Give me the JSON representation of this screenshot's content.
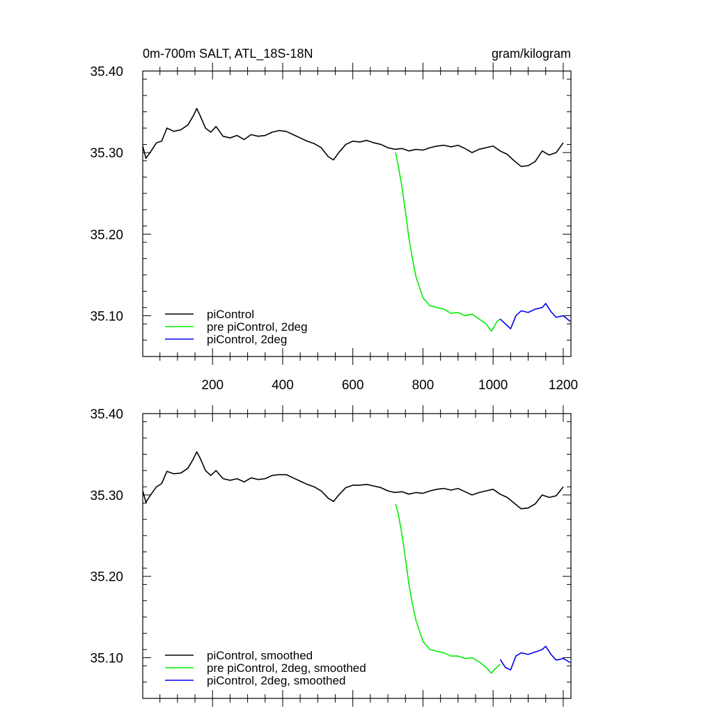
{
  "chart_data": [
    {
      "type": "line",
      "title": "0m-700m SALT, ATL_18S-18N",
      "units": "gram/kilogram",
      "xlim": [
        1,
        1222
      ],
      "ylim": [
        35.05,
        35.4
      ],
      "x_ticks": [
        200,
        400,
        600,
        800,
        1000,
        1200
      ],
      "y_ticks": [
        35.1,
        35.2,
        35.3,
        35.4
      ],
      "y_tick_labels": [
        "35.10",
        "35.20",
        "35.30",
        "35.40"
      ],
      "x_tick_labels": [
        "200",
        "400",
        "600",
        "800",
        "1000",
        "1200"
      ],
      "legend_position": "bottom-left",
      "series": [
        {
          "name": "piControl",
          "color": "#000000",
          "points": [
            [
              1,
              35.308
            ],
            [
              10,
              35.293
            ],
            [
              25,
              35.302
            ],
            [
              40,
              35.312
            ],
            [
              55,
              35.314
            ],
            [
              70,
              35.33
            ],
            [
              90,
              35.326
            ],
            [
              110,
              35.328
            ],
            [
              130,
              35.334
            ],
            [
              145,
              35.345
            ],
            [
              155,
              35.354
            ],
            [
              165,
              35.345
            ],
            [
              180,
              35.33
            ],
            [
              195,
              35.325
            ],
            [
              210,
              35.332
            ],
            [
              230,
              35.32
            ],
            [
              250,
              35.318
            ],
            [
              270,
              35.321
            ],
            [
              290,
              35.316
            ],
            [
              310,
              35.322
            ],
            [
              330,
              35.32
            ],
            [
              350,
              35.321
            ],
            [
              370,
              35.325
            ],
            [
              390,
              35.327
            ],
            [
              410,
              35.326
            ],
            [
              430,
              35.322
            ],
            [
              450,
              35.318
            ],
            [
              470,
              35.314
            ],
            [
              490,
              35.311
            ],
            [
              510,
              35.306
            ],
            [
              530,
              35.295
            ],
            [
              545,
              35.291
            ],
            [
              560,
              35.3
            ],
            [
              580,
              35.31
            ],
            [
              600,
              35.314
            ],
            [
              620,
              35.313
            ],
            [
              640,
              35.315
            ],
            [
              660,
              35.312
            ],
            [
              680,
              35.31
            ],
            [
              700,
              35.306
            ],
            [
              720,
              35.304
            ],
            [
              740,
              35.305
            ],
            [
              760,
              35.302
            ],
            [
              780,
              35.304
            ],
            [
              800,
              35.303
            ],
            [
              820,
              35.306
            ],
            [
              840,
              35.308
            ],
            [
              860,
              35.309
            ],
            [
              880,
              35.307
            ],
            [
              900,
              35.309
            ],
            [
              920,
              35.305
            ],
            [
              940,
              35.3
            ],
            [
              960,
              35.304
            ],
            [
              980,
              35.306
            ],
            [
              1000,
              35.308
            ],
            [
              1020,
              35.302
            ],
            [
              1040,
              35.298
            ],
            [
              1060,
              35.29
            ],
            [
              1080,
              35.283
            ],
            [
              1100,
              35.284
            ],
            [
              1120,
              35.289
            ],
            [
              1140,
              35.302
            ],
            [
              1160,
              35.297
            ],
            [
              1180,
              35.3
            ],
            [
              1200,
              35.312
            ]
          ]
        },
        {
          "name": "pre piControl, 2deg",
          "color": "#00ee00",
          "points": [
            [
              722,
              35.3
            ],
            [
              730,
              35.283
            ],
            [
              740,
              35.258
            ],
            [
              750,
              35.228
            ],
            [
              760,
              35.195
            ],
            [
              770,
              35.17
            ],
            [
              780,
              35.148
            ],
            [
              790,
              35.135
            ],
            [
              800,
              35.122
            ],
            [
              820,
              35.112
            ],
            [
              840,
              35.11
            ],
            [
              860,
              35.108
            ],
            [
              880,
              35.103
            ],
            [
              900,
              35.104
            ],
            [
              920,
              35.1
            ],
            [
              940,
              35.102
            ],
            [
              960,
              35.096
            ],
            [
              980,
              35.09
            ],
            [
              995,
              35.081
            ],
            [
              1010,
              35.092
            ],
            [
              1020,
              35.096
            ]
          ]
        },
        {
          "name": "piControl, 2deg",
          "color": "#0000ee",
          "points": [
            [
              1020,
              35.096
            ],
            [
              1035,
              35.09
            ],
            [
              1050,
              35.084
            ],
            [
              1065,
              35.1
            ],
            [
              1080,
              35.106
            ],
            [
              1100,
              35.104
            ],
            [
              1120,
              35.108
            ],
            [
              1140,
              35.11
            ],
            [
              1150,
              35.115
            ],
            [
              1165,
              35.105
            ],
            [
              1180,
              35.098
            ],
            [
              1200,
              35.1
            ],
            [
              1220,
              35.093
            ]
          ]
        }
      ]
    },
    {
      "type": "line",
      "title": "",
      "xlim": [
        1,
        1222
      ],
      "ylim": [
        35.05,
        35.4
      ],
      "x_ticks": [
        200,
        400,
        600,
        800,
        1000,
        1200
      ],
      "y_ticks": [
        35.1,
        35.2,
        35.3,
        35.4
      ],
      "y_tick_labels": [
        "35.10",
        "35.20",
        "35.30",
        "35.40"
      ],
      "legend_position": "bottom-left",
      "series": [
        {
          "name": "piControl, smoothed",
          "color": "#000000",
          "points": [
            [
              1,
              35.305
            ],
            [
              10,
              35.291
            ],
            [
              25,
              35.301
            ],
            [
              40,
              35.31
            ],
            [
              55,
              35.314
            ],
            [
              70,
              35.329
            ],
            [
              90,
              35.326
            ],
            [
              110,
              35.327
            ],
            [
              130,
              35.333
            ],
            [
              145,
              35.344
            ],
            [
              155,
              35.353
            ],
            [
              165,
              35.345
            ],
            [
              180,
              35.33
            ],
            [
              195,
              35.324
            ],
            [
              210,
              35.33
            ],
            [
              230,
              35.32
            ],
            [
              250,
              35.318
            ],
            [
              270,
              35.32
            ],
            [
              290,
              35.316
            ],
            [
              310,
              35.321
            ],
            [
              330,
              35.319
            ],
            [
              350,
              35.32
            ],
            [
              370,
              35.324
            ],
            [
              390,
              35.325
            ],
            [
              410,
              35.325
            ],
            [
              430,
              35.321
            ],
            [
              450,
              35.317
            ],
            [
              470,
              35.313
            ],
            [
              490,
              35.31
            ],
            [
              510,
              35.305
            ],
            [
              530,
              35.296
            ],
            [
              545,
              35.292
            ],
            [
              560,
              35.3
            ],
            [
              580,
              35.309
            ],
            [
              600,
              35.312
            ],
            [
              620,
              35.312
            ],
            [
              640,
              35.313
            ],
            [
              660,
              35.311
            ],
            [
              680,
              35.309
            ],
            [
              700,
              35.305
            ],
            [
              720,
              35.303
            ],
            [
              740,
              35.304
            ],
            [
              760,
              35.301
            ],
            [
              780,
              35.303
            ],
            [
              800,
              35.302
            ],
            [
              820,
              35.305
            ],
            [
              840,
              35.307
            ],
            [
              860,
              35.308
            ],
            [
              880,
              35.306
            ],
            [
              900,
              35.308
            ],
            [
              920,
              35.304
            ],
            [
              940,
              35.3
            ],
            [
              960,
              35.303
            ],
            [
              980,
              35.305
            ],
            [
              1000,
              35.307
            ],
            [
              1020,
              35.301
            ],
            [
              1040,
              35.297
            ],
            [
              1060,
              35.29
            ],
            [
              1080,
              35.283
            ],
            [
              1100,
              35.284
            ],
            [
              1120,
              35.289
            ],
            [
              1140,
              35.3
            ],
            [
              1160,
              35.297
            ],
            [
              1180,
              35.299
            ],
            [
              1200,
              35.31
            ]
          ]
        },
        {
          "name": "pre piControl, 2deg, smoothed",
          "color": "#00ee00",
          "points": [
            [
              722,
              35.289
            ],
            [
              730,
              35.276
            ],
            [
              740,
              35.252
            ],
            [
              750,
              35.222
            ],
            [
              760,
              35.19
            ],
            [
              770,
              35.166
            ],
            [
              780,
              35.146
            ],
            [
              790,
              35.133
            ],
            [
              800,
              35.12
            ],
            [
              820,
              35.11
            ],
            [
              840,
              35.108
            ],
            [
              860,
              35.106
            ],
            [
              880,
              35.102
            ],
            [
              900,
              35.102
            ],
            [
              920,
              35.099
            ],
            [
              940,
              35.1
            ],
            [
              960,
              35.095
            ],
            [
              980,
              35.088
            ],
            [
              995,
              35.081
            ],
            [
              1010,
              35.088
            ],
            [
              1020,
              35.092
            ]
          ]
        },
        {
          "name": "piControl, 2deg, smoothed",
          "color": "#0000ee",
          "points": [
            [
              1020,
              35.098
            ],
            [
              1035,
              35.088
            ],
            [
              1050,
              35.085
            ],
            [
              1065,
              35.102
            ],
            [
              1080,
              35.106
            ],
            [
              1100,
              35.104
            ],
            [
              1120,
              35.107
            ],
            [
              1140,
              35.11
            ],
            [
              1150,
              35.114
            ],
            [
              1165,
              35.104
            ],
            [
              1180,
              35.097
            ],
            [
              1200,
              35.099
            ],
            [
              1220,
              35.094
            ]
          ]
        }
      ]
    }
  ]
}
